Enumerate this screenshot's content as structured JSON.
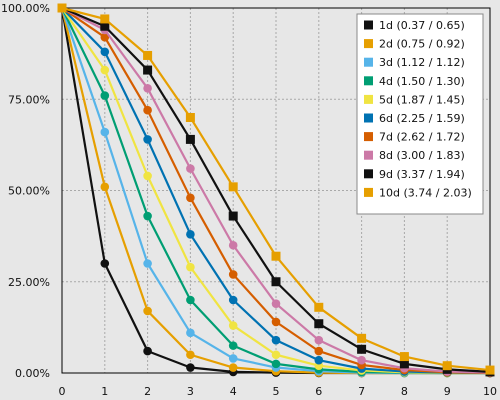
{
  "chart_data": {
    "type": "line",
    "title": "",
    "xlabel": "",
    "ylabel": "",
    "xlim": [
      0,
      10
    ],
    "ylim": [
      0,
      100
    ],
    "x_ticks": [
      "0",
      "1",
      "2",
      "3",
      "4",
      "5",
      "6",
      "7",
      "8",
      "9",
      "10"
    ],
    "y_ticks": [
      {
        "value": 0,
        "label": "0.00%"
      },
      {
        "value": 25,
        "label": "25.00%"
      },
      {
        "value": 50,
        "label": "50.00%"
      },
      {
        "value": 75,
        "label": "75.00%"
      },
      {
        "value": 100,
        "label": "100.00%"
      }
    ],
    "grid": true,
    "legend_position": "top-right",
    "x": [
      0,
      1,
      2,
      3,
      4,
      5,
      6,
      7,
      8,
      9,
      10
    ],
    "series": [
      {
        "name": "1d (0.37 / 0.65)",
        "color": "#111111",
        "marker": "circle",
        "values": [
          100,
          30,
          6,
          1.5,
          0.3,
          0.1,
          0,
          0,
          0,
          0,
          0
        ]
      },
      {
        "name": "2d (0.75 / 0.92)",
        "color": "#e69f00",
        "marker": "circle",
        "values": [
          100,
          51,
          17,
          5,
          1.5,
          0.5,
          0.1,
          0,
          0,
          0,
          0
        ]
      },
      {
        "name": "3d (1.12 / 1.12)",
        "color": "#56b4e9",
        "marker": "circle",
        "values": [
          100,
          66,
          30,
          11,
          4,
          1.5,
          0.5,
          0.1,
          0,
          0,
          0
        ]
      },
      {
        "name": "4d (1.50 / 1.30)",
        "color": "#009e73",
        "marker": "circle",
        "values": [
          100,
          76,
          43,
          20,
          7.5,
          2.5,
          1,
          0.3,
          0.1,
          0,
          0
        ]
      },
      {
        "name": "5d (1.87 / 1.45)",
        "color": "#f0e442",
        "marker": "circle",
        "values": [
          100,
          83,
          54,
          29,
          13,
          5,
          2,
          0.7,
          0.2,
          0,
          0
        ]
      },
      {
        "name": "6d (2.25 / 1.59)",
        "color": "#0072b2",
        "marker": "circle",
        "values": [
          100,
          88,
          64,
          38,
          20,
          9,
          3.5,
          1.2,
          0.4,
          0.1,
          0
        ]
      },
      {
        "name": "7d (2.62 / 1.72)",
        "color": "#d55e00",
        "marker": "circle",
        "values": [
          100,
          92,
          72,
          48,
          27,
          14,
          6,
          2.2,
          0.8,
          0.2,
          0
        ]
      },
      {
        "name": "8d (3.00 / 1.83)",
        "color": "#cc79a7",
        "marker": "circle",
        "values": [
          100,
          94,
          78,
          56,
          35,
          19,
          9,
          3.5,
          1.3,
          0.4,
          0.1
        ]
      },
      {
        "name": "9d (3.37 / 1.94)",
        "color": "#111111",
        "marker": "square",
        "values": [
          100,
          95,
          83,
          64,
          43,
          25,
          13.5,
          6.5,
          2.5,
          1,
          0.3
        ]
      },
      {
        "name": "10d (3.74 / 2.03)",
        "color": "#e69f00",
        "marker": "square",
        "values": [
          100,
          97,
          87,
          70,
          51,
          32,
          18,
          9.5,
          4.5,
          2,
          0.8
        ]
      }
    ]
  }
}
